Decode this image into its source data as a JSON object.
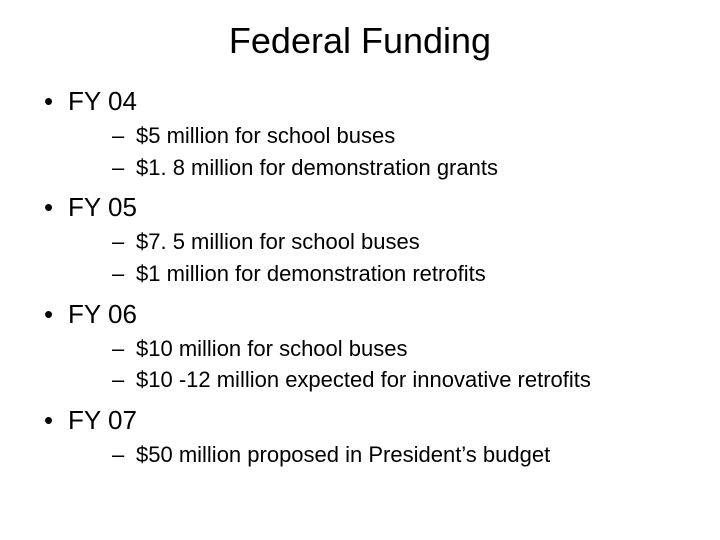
{
  "title": "Federal Funding",
  "sections": [
    {
      "label": "FY 04",
      "items": [
        "$5 million for school buses",
        "$1. 8 million for demonstration grants"
      ]
    },
    {
      "label": "FY 05",
      "items": [
        "$7. 5 million for school buses",
        "$1 million for demonstration retrofits"
      ]
    },
    {
      "label": "FY 06",
      "items": [
        "$10 million for school buses",
        "$10 -12 million expected for innovative retrofits"
      ]
    },
    {
      "label": "FY 07",
      "items": [
        "$50 million proposed in President’s budget"
      ]
    }
  ],
  "colors": {
    "background": "#ffffff",
    "text": "#000000"
  },
  "typography": {
    "title_fontsize": 36,
    "section_fontsize": 26,
    "sub_fontsize": 22,
    "font_family": "Arial"
  }
}
